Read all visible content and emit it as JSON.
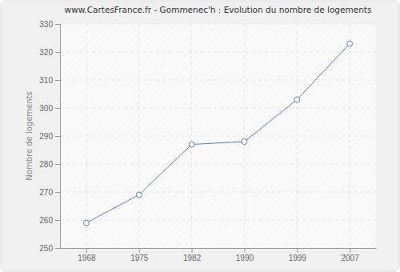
{
  "chart_data": {
    "type": "line",
    "title": "www.CartesFrance.fr - Gommenec'h : Evolution du nombre de logements",
    "y_label": "Nombre de logements",
    "categories": [
      "1968",
      "1975",
      "1982",
      "1990",
      "1999",
      "2007"
    ],
    "values": [
      259,
      269,
      287,
      288,
      303,
      323
    ],
    "color": "#5a80ad",
    "marker": "circle",
    "ylim": [
      250,
      330
    ],
    "yticks": [
      250,
      260,
      270,
      280,
      290,
      300,
      310,
      320,
      330
    ],
    "grid": true
  }
}
